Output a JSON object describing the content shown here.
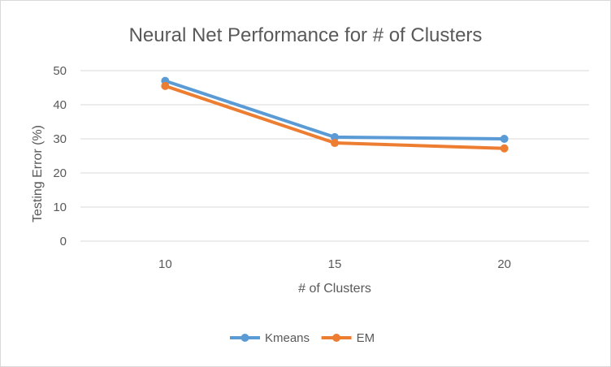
{
  "chart_data": {
    "type": "line",
    "title": "Neural Net Performance  for # of Clusters",
    "xlabel": "# of Clusters",
    "ylabel": "Testing Error (%)",
    "categories": [
      "10",
      "15",
      "20"
    ],
    "ylim": [
      0,
      50
    ],
    "yticks": [
      "0",
      "10",
      "20",
      "30",
      "40",
      "50"
    ],
    "grid": true,
    "legend_position": "bottom",
    "series": [
      {
        "name": "Kmeans",
        "color": "#5B9BD5",
        "values": [
          47,
          30.5,
          30
        ]
      },
      {
        "name": "EM",
        "color": "#ED7D31",
        "values": [
          45.5,
          28.8,
          27.2
        ]
      }
    ]
  }
}
